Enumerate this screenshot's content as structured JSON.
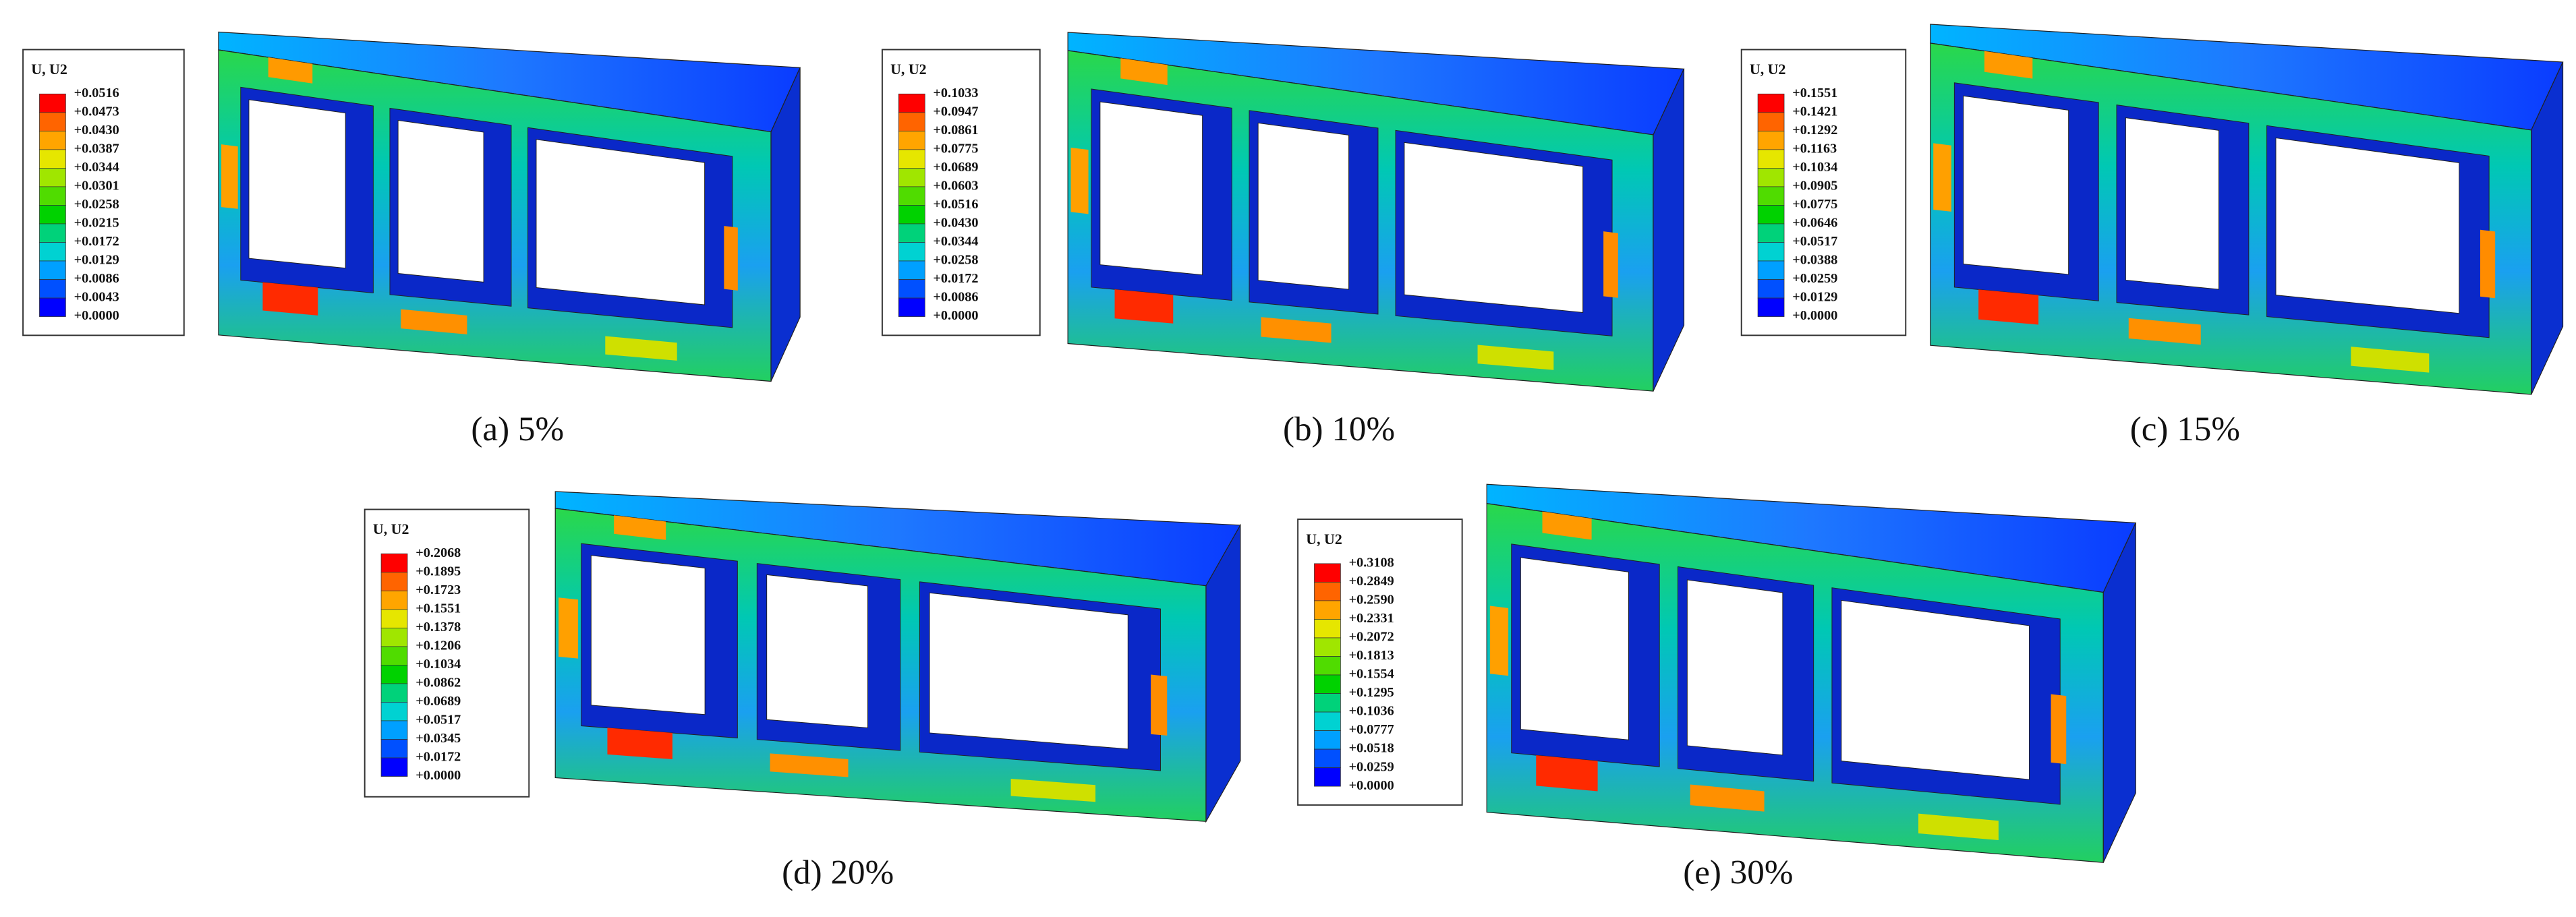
{
  "panels": [
    {
      "legend": {
        "title": "U, U2",
        "labels": [
          "+0.0516",
          "+0.0473",
          "+0.0430",
          "+0.0387",
          "+0.0344",
          "+0.0301",
          "+0.0258",
          "+0.0215",
          "+0.0172",
          "+0.0129",
          "+0.0086",
          "+0.0043",
          "+0.0000"
        ]
      },
      "caption": "(a) 5%"
    },
    {
      "legend": {
        "title": "U, U2",
        "labels": [
          "+0.1033",
          "+0.0947",
          "+0.0861",
          "+0.0775",
          "+0.0689",
          "+0.0603",
          "+0.0516",
          "+0.0430",
          "+0.0344",
          "+0.0258",
          "+0.0172",
          "+0.0086",
          "+0.0000"
        ]
      },
      "caption": "(b) 10%"
    },
    {
      "legend": {
        "title": "U, U2",
        "labels": [
          "+0.1551",
          "+0.1421",
          "+0.1292",
          "+0.1163",
          "+0.1034",
          "+0.0905",
          "+0.0775",
          "+0.0646",
          "+0.0517",
          "+0.0388",
          "+0.0259",
          "+0.0129",
          "+0.0000"
        ]
      },
      "caption": "(c) 15%"
    },
    {
      "legend": {
        "title": "U, U2",
        "labels": [
          "+0.2068",
          "+0.1895",
          "+0.1723",
          "+0.1551",
          "+0.1378",
          "+0.1206",
          "+0.1034",
          "+0.0862",
          "+0.0689",
          "+0.0517",
          "+0.0345",
          "+0.0172",
          "+0.0000"
        ]
      },
      "caption": "(d) 20%"
    },
    {
      "legend": {
        "title": "U, U2",
        "labels": [
          "+0.3108",
          "+0.2849",
          "+0.2590",
          "+0.2331",
          "+0.2072",
          "+0.1813",
          "+0.1554",
          "+0.1295",
          "+0.1036",
          "+0.0777",
          "+0.0518",
          "+0.0259",
          "+0.0000"
        ]
      },
      "caption": "(e) 30%"
    }
  ]
}
